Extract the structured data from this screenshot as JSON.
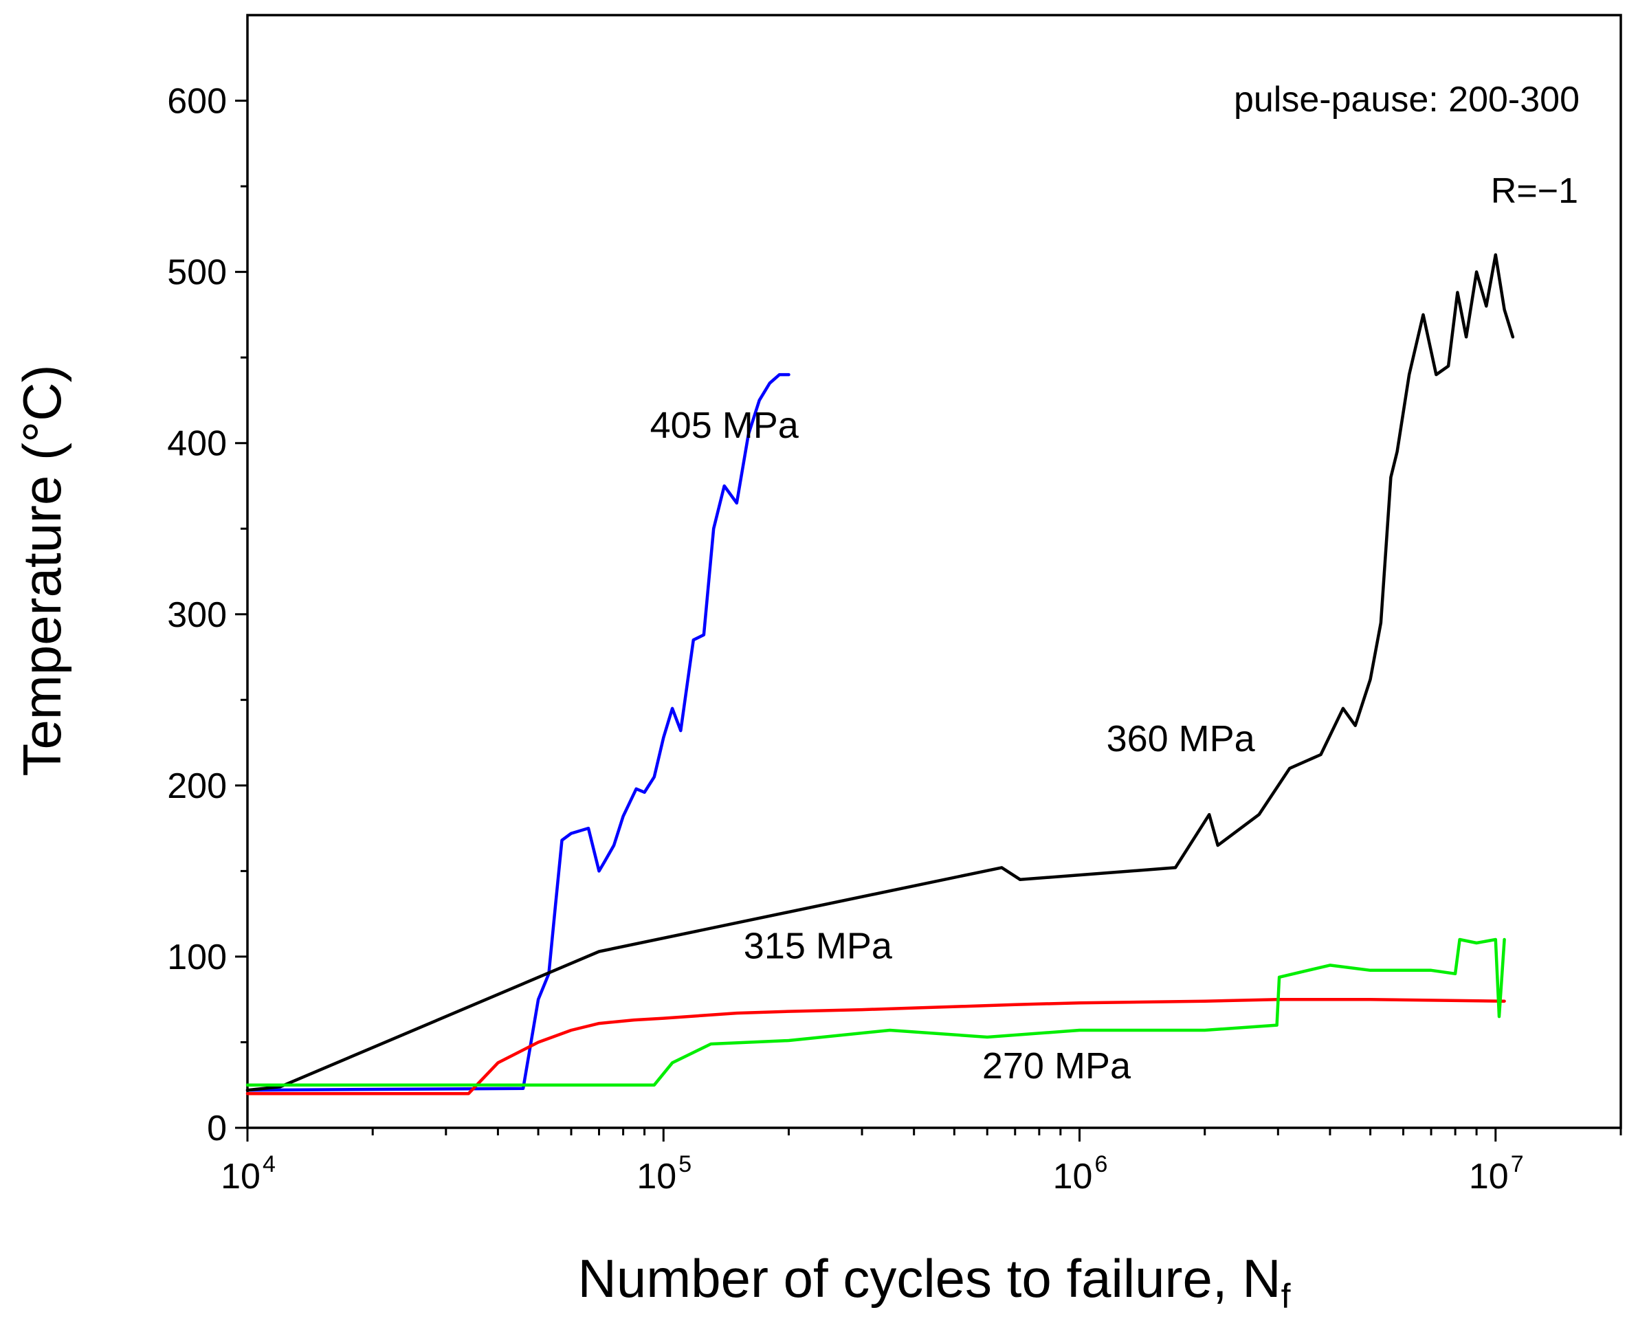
{
  "chart_data": {
    "type": "line",
    "title": "",
    "xlabel": "Number of cycles to failure, N",
    "xlabel_subscript": "f",
    "ylabel": "Temperature (°C)",
    "xscale": "log",
    "xlim": [
      10000,
      20000000
    ],
    "ylim": [
      0,
      650
    ],
    "x_ticks": [
      {
        "value": 10000,
        "base": "10",
        "exp": "4"
      },
      {
        "value": 100000,
        "base": "10",
        "exp": "5"
      },
      {
        "value": 1000000,
        "base": "10",
        "exp": "6"
      },
      {
        "value": 10000000,
        "base": "10",
        "exp": "7"
      }
    ],
    "y_ticks": [
      0,
      100,
      200,
      300,
      400,
      500,
      600
    ],
    "annotations": [
      "pulse-pause: 200-300",
      "R=−1"
    ],
    "series": [
      {
        "name": "405 MPa",
        "color": "#0000ff",
        "x": [
          10000,
          46000,
          50000,
          53000,
          55000,
          57000,
          60000,
          66000,
          70000,
          72000,
          76000,
          80000,
          86000,
          90000,
          95000,
          100000,
          105000,
          110000,
          118000,
          125000,
          132000,
          140000,
          150000,
          160000,
          170000,
          180000,
          190000,
          200000
        ],
        "y": [
          22,
          23,
          75,
          90,
          130,
          168,
          172,
          175,
          150,
          155,
          165,
          182,
          198,
          196,
          205,
          228,
          245,
          232,
          285,
          288,
          350,
          375,
          365,
          405,
          425,
          435,
          440,
          440
        ],
        "label_x": 140000,
        "label_y": 403
      },
      {
        "name": "360 MPa",
        "color": "#000000",
        "x": [
          10000,
          12000,
          70000,
          650000,
          720000,
          1700000,
          2050000,
          2150000,
          2700000,
          3200000,
          3800000,
          4300000,
          4600000,
          5000000,
          5300000,
          5600000,
          5800000,
          6200000,
          6700000,
          7200000,
          7700000,
          8100000,
          8500000,
          9000000,
          9500000,
          10000000,
          10500000,
          11000000
        ],
        "y": [
          22,
          24,
          103,
          152,
          145,
          152,
          183,
          165,
          183,
          210,
          218,
          245,
          235,
          262,
          295,
          380,
          395,
          440,
          475,
          440,
          445,
          488,
          462,
          500,
          480,
          510,
          478,
          462
        ],
        "label_x": 1750000,
        "label_y": 220
      },
      {
        "name": "315 MPa",
        "color": "#ff0000",
        "x": [
          10000,
          34000,
          40000,
          50000,
          60000,
          70000,
          85000,
          100000,
          150000,
          200000,
          300000,
          400000,
          530000,
          700000,
          1000000,
          2000000,
          3000000,
          5000000,
          10500000
        ],
        "y": [
          20,
          20,
          38,
          50,
          57,
          61,
          63,
          64,
          67,
          68,
          69,
          70,
          71,
          72,
          73,
          74,
          75,
          75,
          74
        ],
        "label_x": 235000,
        "label_y": 99
      },
      {
        "name": "270 MPa",
        "color": "#00ee00",
        "x": [
          10000,
          95000,
          105000,
          130000,
          200000,
          350000,
          600000,
          1000000,
          2000000,
          2980000,
          3020000,
          4000000,
          5000000,
          7000000,
          8000000,
          8200000,
          9000000,
          10000000,
          10200000,
          10500000
        ],
        "y": [
          25,
          25,
          38,
          49,
          51,
          57,
          53,
          57,
          57,
          60,
          88,
          95,
          92,
          92,
          90,
          110,
          108,
          110,
          65,
          110
        ],
        "label_x": 880000,
        "label_y": 29
      }
    ]
  }
}
